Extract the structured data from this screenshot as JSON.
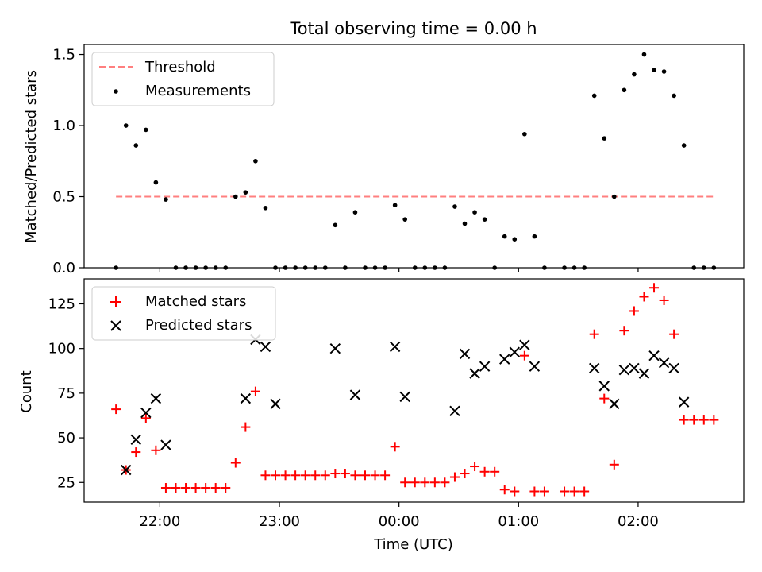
{
  "chart_data": [
    {
      "type": "scatter",
      "title": "Total observing time = 0.00 h",
      "ylabel": "Matched/Predicted stars",
      "xlabel": "",
      "ylim": [
        0,
        1.57
      ],
      "xlim": [
        "21:22",
        "02:53"
      ],
      "yticks": [
        0.0,
        0.5,
        1.0,
        1.5
      ],
      "ytick_labels": [
        "0.0",
        "0.5",
        "1.0",
        "1.5"
      ],
      "legend": {
        "position": "top-left",
        "entries": [
          "Threshold",
          "Measurements"
        ]
      },
      "threshold": {
        "name": "Threshold",
        "y": 0.5,
        "x_start": "21:38",
        "x_end": "02:38",
        "color": "#ff7f7f"
      },
      "series": [
        {
          "name": "Measurements",
          "color": "#000000",
          "x": [
            "21:38",
            "21:43",
            "21:48",
            "21:53",
            "21:58",
            "22:03",
            "22:08",
            "22:13",
            "22:18",
            "22:23",
            "22:28",
            "22:33",
            "22:38",
            "22:43",
            "22:48",
            "22:53",
            "22:58",
            "23:03",
            "23:08",
            "23:13",
            "23:18",
            "23:23",
            "23:28",
            "23:33",
            "23:38",
            "23:43",
            "23:48",
            "23:53",
            "23:58",
            "00:03",
            "00:08",
            "00:13",
            "00:18",
            "00:23",
            "00:28",
            "00:33",
            "00:38",
            "00:43",
            "00:48",
            "00:53",
            "00:58",
            "01:03",
            "01:08",
            "01:13",
            "01:23",
            "01:28",
            "01:33",
            "01:38",
            "01:43",
            "01:48",
            "01:53",
            "01:58",
            "02:03",
            "02:08",
            "02:13",
            "02:18",
            "02:23",
            "02:28",
            "02:33",
            "02:38"
          ],
          "y": [
            0.0,
            1.0,
            0.86,
            0.97,
            0.6,
            0.48,
            0.0,
            0.0,
            0.0,
            0.0,
            0.0,
            0.0,
            0.5,
            0.53,
            0.75,
            0.42,
            0.0,
            0.0,
            0.0,
            0.0,
            0.0,
            0.0,
            0.3,
            0.0,
            0.39,
            0.0,
            0.0,
            0.0,
            0.44,
            0.34,
            0.0,
            0.0,
            0.0,
            0.0,
            0.43,
            0.31,
            0.39,
            0.34,
            0.0,
            0.22,
            0.2,
            0.94,
            0.22,
            0.0,
            0.0,
            0.0,
            0.0,
            1.21,
            0.91,
            0.5,
            1.25,
            1.36,
            1.5,
            1.39,
            1.38,
            1.21,
            0.86,
            0.0,
            0.0,
            0.0
          ]
        }
      ]
    },
    {
      "type": "scatter",
      "title": "",
      "ylabel": "Count",
      "xlabel": "Time (UTC)",
      "ylim": [
        14,
        139
      ],
      "xlim": [
        "21:22",
        "02:53"
      ],
      "yticks": [
        25,
        50,
        75,
        100,
        125
      ],
      "ytick_labels": [
        "25",
        "50",
        "75",
        "100",
        "125"
      ],
      "xticks": [
        "22:00",
        "23:00",
        "00:00",
        "01:00",
        "02:00"
      ],
      "legend": {
        "position": "top-left",
        "entries": [
          "Matched stars",
          "Predicted stars"
        ]
      },
      "series": [
        {
          "name": "Matched stars",
          "marker": "plus",
          "color": "#ff0000",
          "x": [
            "21:38",
            "21:43",
            "21:48",
            "21:53",
            "21:58",
            "22:03",
            "22:08",
            "22:13",
            "22:18",
            "22:23",
            "22:28",
            "22:33",
            "22:38",
            "22:43",
            "22:48",
            "22:53",
            "22:58",
            "23:03",
            "23:08",
            "23:13",
            "23:18",
            "23:23",
            "23:28",
            "23:33",
            "23:38",
            "23:43",
            "23:48",
            "23:53",
            "23:58",
            "00:03",
            "00:08",
            "00:13",
            "00:18",
            "00:23",
            "00:28",
            "00:33",
            "00:38",
            "00:43",
            "00:48",
            "00:53",
            "00:58",
            "01:03",
            "01:08",
            "01:13",
            "01:23",
            "01:28",
            "01:33",
            "01:38",
            "01:43",
            "01:48",
            "01:53",
            "01:58",
            "02:03",
            "02:08",
            "02:13",
            "02:18",
            "02:23",
            "02:28",
            "02:33",
            "02:38"
          ],
          "y": [
            66,
            32,
            42,
            61,
            43,
            22,
            22,
            22,
            22,
            22,
            22,
            22,
            36,
            56,
            76,
            29,
            29,
            29,
            29,
            29,
            29,
            29,
            30,
            30,
            29,
            29,
            29,
            29,
            45,
            25,
            25,
            25,
            25,
            25,
            28,
            30,
            34,
            31,
            31,
            21,
            20,
            96,
            20,
            20,
            20,
            20,
            20,
            108,
            72,
            35,
            110,
            121,
            129,
            134,
            127,
            108,
            60,
            60,
            60,
            60
          ]
        },
        {
          "name": "Predicted stars",
          "marker": "x",
          "color": "#000000",
          "x": [
            "21:43",
            "21:48",
            "21:53",
            "21:58",
            "22:03",
            "22:43",
            "22:48",
            "22:53",
            "22:58",
            "23:28",
            "23:38",
            "23:58",
            "00:03",
            "00:28",
            "00:33",
            "00:38",
            "00:43",
            "00:53",
            "00:58",
            "01:03",
            "01:08",
            "01:38",
            "01:43",
            "01:48",
            "01:53",
            "01:58",
            "02:03",
            "02:08",
            "02:13",
            "02:18",
            "02:23"
          ],
          "y": [
            32,
            49,
            64,
            72,
            46,
            72,
            105,
            101,
            69,
            100,
            74,
            101,
            73,
            65,
            97,
            86,
            90,
            94,
            98,
            102,
            90,
            89,
            79,
            69,
            88,
            89,
            86,
            96,
            92,
            89,
            70
          ]
        }
      ]
    }
  ]
}
